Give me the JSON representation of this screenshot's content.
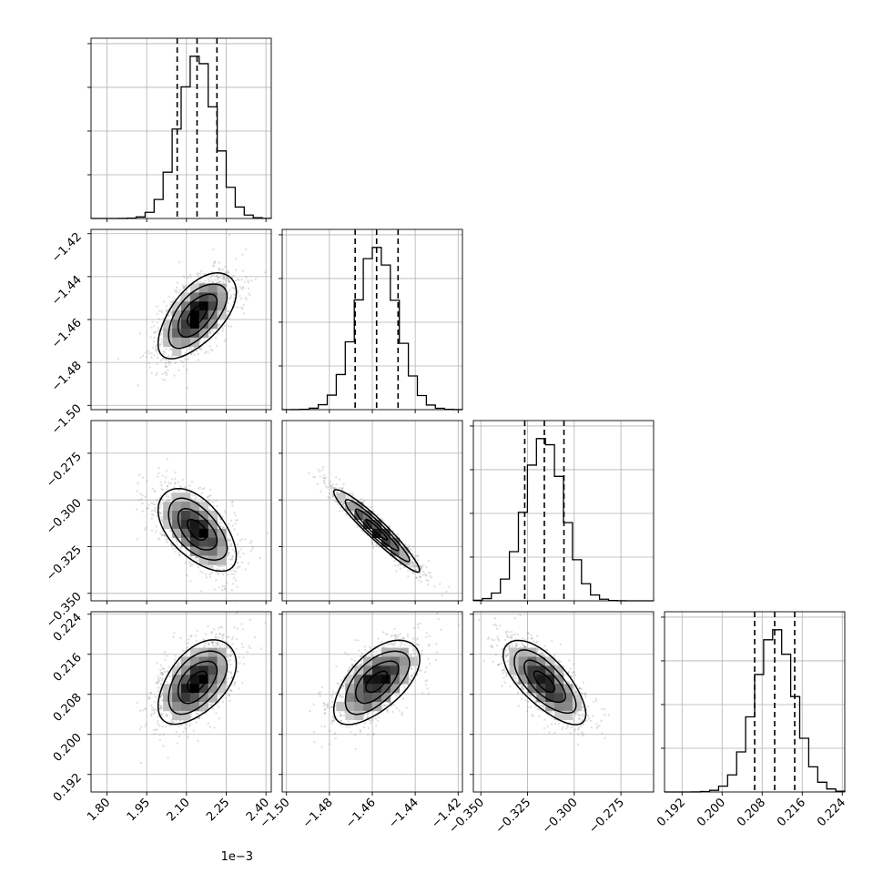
{
  "chart_data": {
    "type": "corner",
    "title": "",
    "parameters": [
      {
        "index": 0,
        "range": [
          1.74,
          2.42
        ],
        "ticks": [
          1.8,
          1.95,
          2.1,
          2.25,
          2.4
        ],
        "tick_labels": [
          "1.80",
          "1.95",
          "2.10",
          "2.25",
          "2.40"
        ],
        "offset_label": "1e−3",
        "mean": 2.14,
        "sd": 0.07,
        "quantiles": [
          2.065,
          2.14,
          2.215
        ],
        "hist_rows": [
          "0.0",
          "0.4"
        ]
      },
      {
        "index": 1,
        "range": [
          -1.502,
          -1.418
        ],
        "ticks": [
          -1.5,
          -1.48,
          -1.46,
          -1.44,
          -1.42
        ],
        "tick_labels": [
          "−1.50",
          "−1.48",
          "−1.46",
          "−1.44",
          "−1.42"
        ],
        "mean": -1.458,
        "sd": 0.0095,
        "quantiles": [
          -1.468,
          -1.458,
          -1.448
        ]
      },
      {
        "index": 2,
        "range": [
          -0.354,
          -0.2575
        ],
        "ticks": [
          -0.35,
          -0.325,
          -0.3,
          -0.275
        ],
        "tick_labels": [
          "−0.350",
          "−0.325",
          "−0.300",
          "−0.275"
        ],
        "mean": -0.316,
        "sd": 0.0105,
        "quantiles": [
          -0.3265,
          -0.316,
          -0.3055
        ]
      },
      {
        "index": 3,
        "range": [
          0.1885,
          0.2245
        ],
        "ticks": [
          0.192,
          0.2,
          0.208,
          0.216,
          0.224
        ],
        "tick_labels": [
          "0.192",
          "0.200",
          "0.208",
          "0.216",
          "0.224"
        ],
        "mean": 0.2105,
        "sd": 0.004,
        "quantiles": [
          0.2065,
          0.2105,
          0.2145
        ]
      }
    ],
    "correlations": {
      "0-1": 0.6,
      "0-2": -0.55,
      "0-3": 0.5,
      "1-2": -0.95,
      "1-3": 0.6,
      "2-3": -0.7
    },
    "grid": true,
    "quantile_lines": "dashed"
  }
}
